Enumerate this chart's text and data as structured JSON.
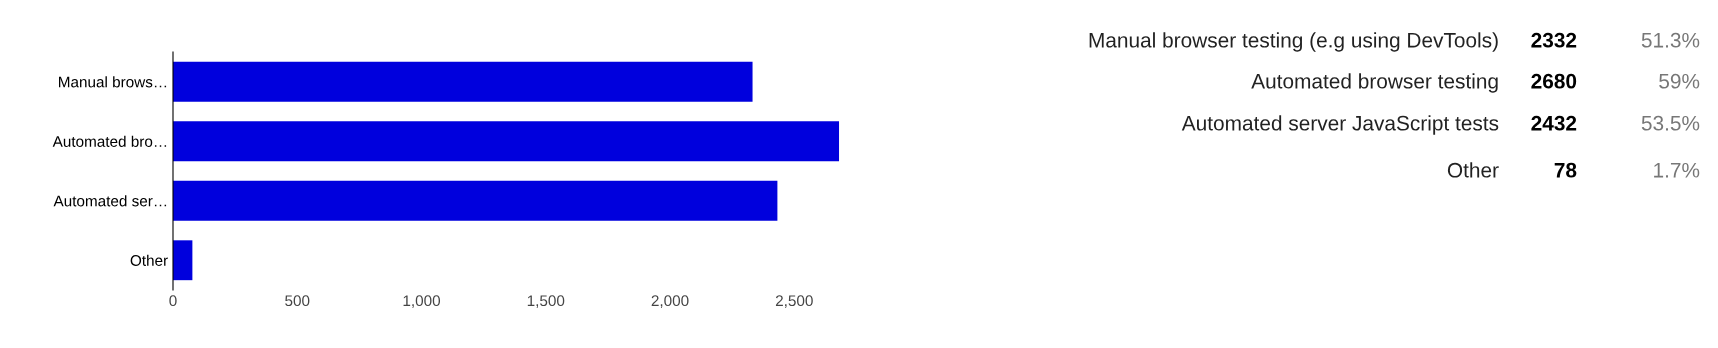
{
  "chart_data": {
    "type": "bar",
    "orientation": "horizontal",
    "categories": [
      "Manual brows…",
      "Automated bro…",
      "Automated ser…",
      "Other"
    ],
    "values": [
      2332,
      2680,
      2432,
      78
    ],
    "color": "#0000dd",
    "xlim": [
      0,
      2700
    ],
    "xticks": [
      0,
      {
        "value": 500,
        "label": "500"
      },
      {
        "value": 1000,
        "label": "1,000"
      },
      {
        "value": 1500,
        "label": "1,500"
      },
      {
        "value": 2000,
        "label": "2,000"
      },
      {
        "value": 2500,
        "label": "2,500"
      }
    ],
    "grid": false,
    "legend": false,
    "annotations": [
      "Manual browser testing (e.g using DevTools)",
      "2332",
      "51.3%",
      "Automated browser testing",
      "2680",
      "59%",
      "Automated server JavaScript tests",
      "2432",
      "53.5%",
      "Other",
      "78",
      "1.7%"
    ]
  }
}
